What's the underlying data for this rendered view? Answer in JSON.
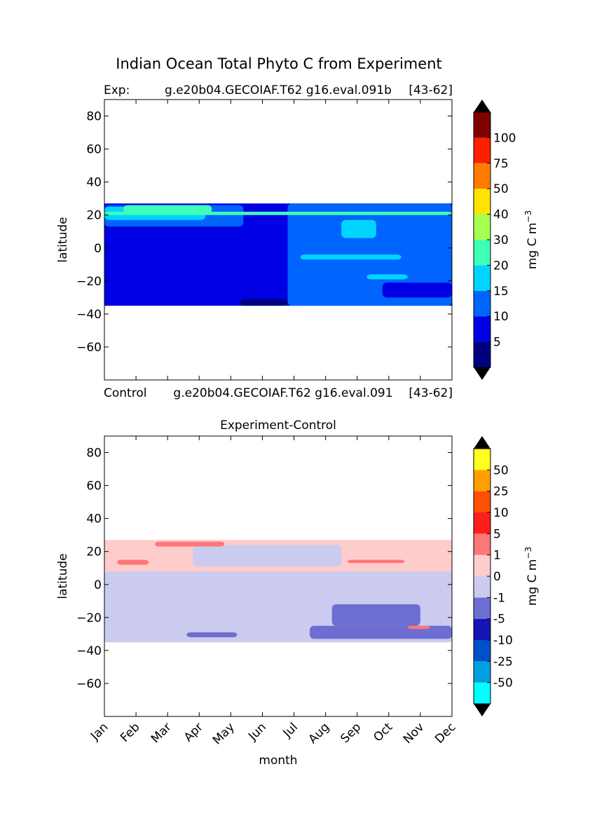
{
  "chart_data": [
    {
      "type": "heatmap",
      "title": "Indian Ocean Total Phyto C from Experiment",
      "subtitle_left": "Exp:",
      "subtitle_center": "g.e20b04.GECOIAF.T62 g16.eval.091b",
      "subtitle_right": "[43-62]",
      "footer_left": "Control",
      "footer_center": "g.e20b04.GECOIAF.T62 g16.eval.091",
      "footer_right": "[43-62]",
      "xlabel": "",
      "ylabel": "latitude",
      "xlim": [
        0,
        11
      ],
      "ylim": [
        -80,
        90
      ],
      "yticks": [
        80,
        60,
        40,
        20,
        0,
        -20,
        -40,
        -60
      ],
      "ytick_labels": [
        "80",
        "60",
        "40",
        "20",
        "0",
        "−20",
        "−40",
        "−60"
      ],
      "data_lat_range": [
        -35,
        27
      ],
      "colorbar": {
        "label": "mg C m",
        "label_sup": "−3",
        "levels": [
          "5",
          "10",
          "15",
          "20",
          "30",
          "40",
          "50",
          "75",
          "100"
        ],
        "colors": [
          "#00007f",
          "#0000e5",
          "#0064ff",
          "#00d5ff",
          "#3fffb6",
          "#a6ff50",
          "#ffe400",
          "#ff7c00",
          "#ff1e00",
          "#7f0000"
        ],
        "under_color": "#000000",
        "over_color": "#000000"
      },
      "regions": [
        {
          "color": "#0000e5",
          "lat": [
            -35,
            27
          ],
          "months": [
            0,
            11
          ]
        },
        {
          "color": "#0064ff",
          "lat": [
            -35,
            27
          ],
          "months": [
            5.8,
            11
          ]
        },
        {
          "color": "#0000e5",
          "lat": [
            -30,
            -21
          ],
          "months": [
            8.8,
            11
          ]
        },
        {
          "color": "#0064ff",
          "lat": [
            13,
            26
          ],
          "months": [
            0,
            4.4
          ]
        },
        {
          "color": "#00d5ff",
          "lat": [
            17,
            25
          ],
          "months": [
            0,
            3.2
          ]
        },
        {
          "color": "#3fffb6",
          "lat": [
            21,
            26
          ],
          "months": [
            0.6,
            3.4
          ]
        },
        {
          "color": "#3fffb6",
          "lat": [
            20,
            22
          ],
          "months": [
            0,
            11
          ]
        },
        {
          "color": "#00d5ff",
          "lat": [
            6,
            17
          ],
          "months": [
            7.5,
            8.6
          ]
        },
        {
          "color": "#00d5ff",
          "lat": [
            -7,
            -4
          ],
          "months": [
            6.2,
            9.4
          ]
        },
        {
          "color": "#00d5ff",
          "lat": [
            -19,
            -16
          ],
          "months": [
            8.3,
            9.6
          ]
        },
        {
          "color": "#00007f",
          "lat": [
            -35,
            -31
          ],
          "months": [
            4.3,
            5.8
          ]
        }
      ]
    },
    {
      "type": "heatmap",
      "title": "Experiment-Control",
      "xlabel": "month",
      "ylabel": "latitude",
      "xlim": [
        0,
        11
      ],
      "ylim": [
        -80,
        90
      ],
      "categories": [
        "Jan",
        "Feb",
        "Mar",
        "Apr",
        "May",
        "Jun",
        "Jul",
        "Aug",
        "Sep",
        "Oct",
        "Nov",
        "Dec"
      ],
      "yticks": [
        80,
        60,
        40,
        20,
        0,
        -20,
        -40,
        -60
      ],
      "ytick_labels": [
        "80",
        "60",
        "40",
        "20",
        "0",
        "−20",
        "−40",
        "−60"
      ],
      "data_lat_range": [
        -35,
        27
      ],
      "colorbar": {
        "label": "mg C m",
        "label_sup": "−3",
        "levels": [
          "-50",
          "-25",
          "-10",
          "-5",
          "-1",
          "0",
          "1",
          "5",
          "10",
          "25",
          "50"
        ],
        "colors": [
          "#00ffff",
          "#009fdf",
          "#0050c8",
          "#1414b4",
          "#6e6ed2",
          "#cbcbef",
          "#ffcccc",
          "#ff7676",
          "#ff1e1e",
          "#ff4f00",
          "#ff9f00",
          "#ffff1e"
        ],
        "under_color": "#000000",
        "over_color": "#000000"
      },
      "regions": [
        {
          "color": "#ffcccc",
          "lat": [
            -35,
            27
          ],
          "months": [
            0,
            11
          ]
        },
        {
          "color": "#cbcbef",
          "lat": [
            -35,
            8
          ],
          "months": [
            0,
            11
          ]
        },
        {
          "color": "#cbcbef",
          "lat": [
            11,
            24
          ],
          "months": [
            2.8,
            7.5
          ]
        },
        {
          "color": "#cbcbef",
          "lat": [
            -35,
            -20
          ],
          "months": [
            0,
            11
          ]
        },
        {
          "color": "#6e6ed2",
          "lat": [
            -25,
            -12
          ],
          "months": [
            7.2,
            10
          ]
        },
        {
          "color": "#6e6ed2",
          "lat": [
            -33,
            -25
          ],
          "months": [
            6.5,
            11
          ]
        },
        {
          "color": "#6e6ed2",
          "lat": [
            -32,
            -29
          ],
          "months": [
            2.6,
            4.2
          ]
        },
        {
          "color": "#ff7676",
          "lat": [
            12,
            15
          ],
          "months": [
            0.4,
            1.4
          ]
        },
        {
          "color": "#ff7676",
          "lat": [
            23,
            26
          ],
          "months": [
            1.6,
            3.8
          ]
        },
        {
          "color": "#ff7676",
          "lat": [
            13,
            15
          ],
          "months": [
            7.7,
            9.5
          ]
        },
        {
          "color": "#ff7676",
          "lat": [
            -27,
            -25
          ],
          "months": [
            9.6,
            10.3
          ]
        }
      ]
    }
  ]
}
